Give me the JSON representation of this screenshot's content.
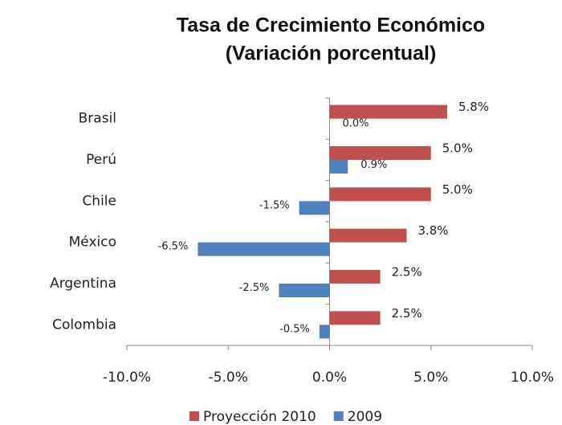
{
  "chart_data": {
    "type": "hbar",
    "title": "Tasa de Crecimiento Económico",
    "subtitle": "(Variación porcentual)",
    "categories": [
      "Brasil",
      "Perú",
      "Chile",
      "México",
      "Argentina",
      "Colombia"
    ],
    "series": [
      {
        "name": "Proyección 2010",
        "color": "#c0504d",
        "values": [
          5.8,
          5.0,
          5.0,
          3.8,
          2.5,
          2.5
        ],
        "value_labels": [
          "5.8%",
          "5.0%",
          "5.0%",
          "3.8%",
          "2.5%",
          "2.5%"
        ]
      },
      {
        "name": "2009",
        "color": "#4f81bd",
        "values": [
          0.0,
          0.9,
          -1.5,
          -6.5,
          -2.5,
          -0.5
        ],
        "value_labels": [
          "0.0%",
          "0.9%",
          "-1.5%",
          "-6.5%",
          "-2.5%",
          "-0.5%"
        ]
      }
    ],
    "xlim": [
      -10,
      10
    ],
    "xticks": [
      {
        "value": -10,
        "label": "-10.0%"
      },
      {
        "value": -5,
        "label": "-5.0%"
      },
      {
        "value": 0,
        "label": "0.0%"
      },
      {
        "value": 5,
        "label": "5.0%"
      },
      {
        "value": 10,
        "label": "10.0%"
      }
    ],
    "legend": "bottom"
  }
}
